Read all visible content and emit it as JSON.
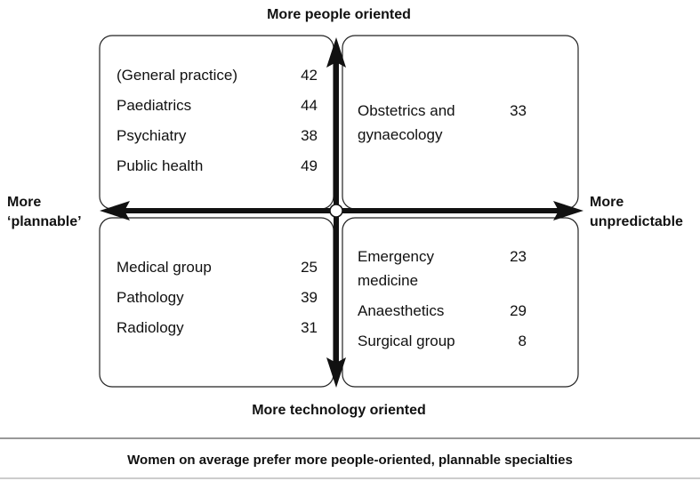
{
  "axes": {
    "top": "More people oriented",
    "bottom": "More technology oriented",
    "left": [
      "More",
      "‘plannable’"
    ],
    "right": [
      "More",
      "unpredictable"
    ]
  },
  "quadrants": [
    {
      "items": [
        {
          "label": "(General practice)",
          "value": "42"
        },
        {
          "label": "Paediatrics",
          "value": "44"
        },
        {
          "label": "Psychiatry",
          "value": "38"
        },
        {
          "label": "Public health",
          "value": "49"
        }
      ]
    },
    {
      "items": [
        {
          "label": "Obstetrics and gynaecology",
          "value": "33"
        }
      ]
    },
    {
      "items": [
        {
          "label": "Medical group",
          "value": "25"
        },
        {
          "label": "Pathology",
          "value": "39"
        },
        {
          "label": "Radiology",
          "value": "31"
        }
      ]
    },
    {
      "items": [
        {
          "label": "Emergency medicine",
          "value": "23"
        },
        {
          "label": "Anaesthetics",
          "value": "29"
        },
        {
          "label": "Surgical group",
          "value": "8"
        }
      ]
    }
  ],
  "caption": "Women on average prefer more people-oriented, plannable specialties"
}
